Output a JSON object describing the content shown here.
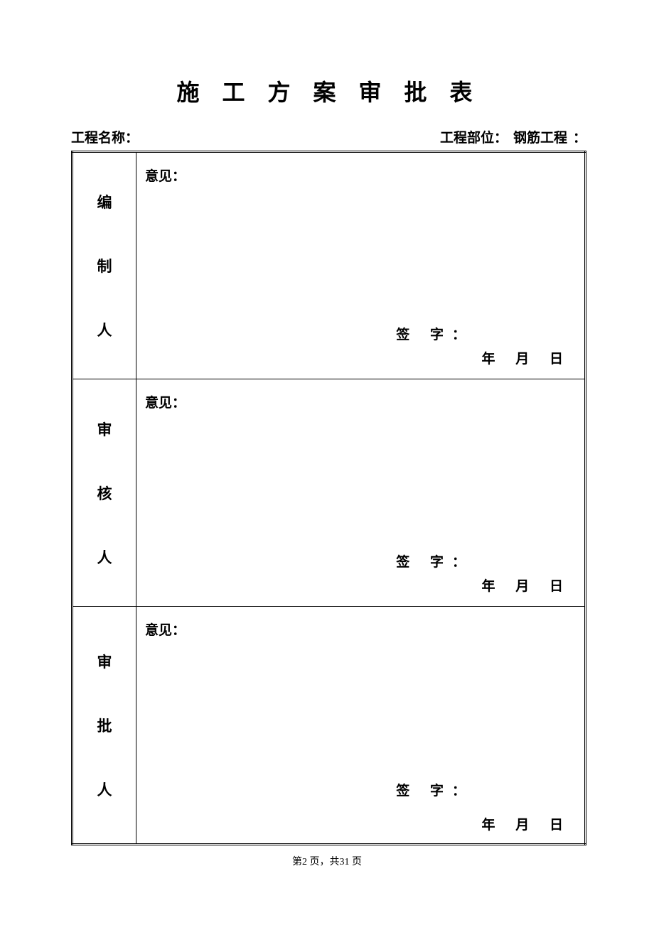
{
  "title": "施 工 方 案 审 批 表",
  "header": {
    "project_name_label": "工程名称：",
    "project_part_label": "工程部位：",
    "project_part_value": "钢筋工程",
    "colon": "："
  },
  "rows": [
    {
      "role": [
        "编",
        "制",
        "人"
      ],
      "opinion_label": "意见：",
      "signature_label": "签  字：",
      "date_year": "年",
      "date_month": "月",
      "date_day": "日"
    },
    {
      "role": [
        "审",
        "核",
        "人"
      ],
      "opinion_label": "意见：",
      "signature_label": "签  字：",
      "date_year": "年",
      "date_month": "月",
      "date_day": "日"
    },
    {
      "role": [
        "审",
        "批",
        "人"
      ],
      "opinion_label": "意见：",
      "signature_label": "签  字：",
      "date_year": "年",
      "date_month": "月",
      "date_day": "日"
    }
  ],
  "footer": {
    "text": "第2 页，共31 页"
  },
  "styling": {
    "background_color": "#ffffff",
    "text_color": "#000000",
    "border_color": "#000000",
    "title_fontsize": 32,
    "label_fontsize": 19,
    "role_fontsize": 21,
    "footer_fontsize": 14,
    "font_family": "SimSun"
  }
}
